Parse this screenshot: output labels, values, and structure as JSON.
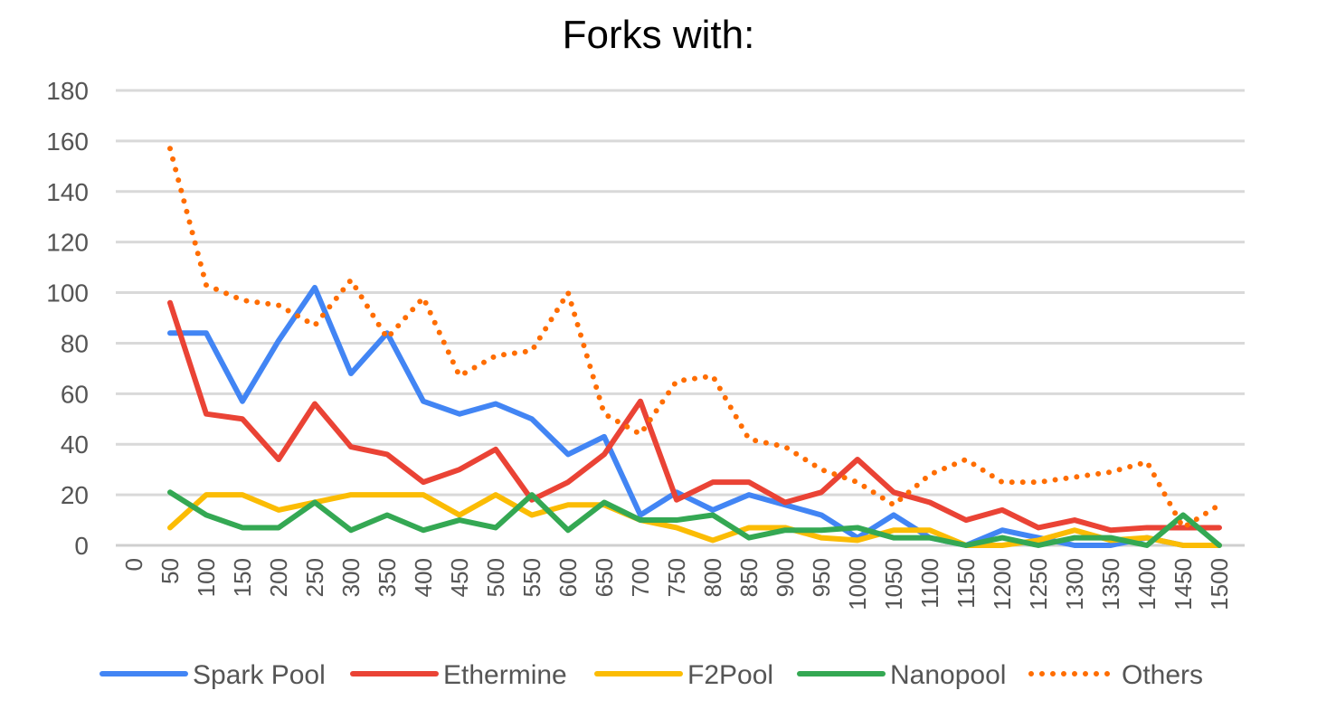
{
  "chart_data": {
    "type": "line",
    "title": "Forks with:",
    "xlabel": "",
    "ylabel": "",
    "ylim": [
      0,
      180
    ],
    "yticks": [
      0,
      20,
      40,
      60,
      80,
      100,
      120,
      140,
      160,
      180
    ],
    "grid": true,
    "legend_position": "bottom",
    "categories": [
      "0",
      "50",
      "100",
      "150",
      "200",
      "250",
      "300",
      "350",
      "400",
      "450",
      "500",
      "550",
      "600",
      "650",
      "700",
      "750",
      "800",
      "850",
      "900",
      "950",
      "1000",
      "1050",
      "1100",
      "1150",
      "1200",
      "1250",
      "1300",
      "1350",
      "1400",
      "1450",
      "1500"
    ],
    "series": [
      {
        "name": "Spark Pool",
        "color": "#4285F4",
        "style": "solid",
        "values": [
          null,
          84,
          84,
          57,
          81,
          102,
          68,
          84,
          57,
          52,
          56,
          50,
          36,
          43,
          12,
          21,
          14,
          20,
          16,
          12,
          3,
          12,
          3,
          0,
          6,
          3,
          0,
          0,
          3,
          0,
          0
        ]
      },
      {
        "name": "Ethermine",
        "color": "#EA4335",
        "style": "solid",
        "values": [
          null,
          96,
          52,
          50,
          34,
          56,
          39,
          36,
          25,
          30,
          38,
          18,
          25,
          36,
          57,
          18,
          25,
          25,
          17,
          21,
          34,
          21,
          17,
          10,
          14,
          7,
          10,
          6,
          7,
          7,
          7
        ]
      },
      {
        "name": "F2Pool",
        "color": "#FBBC04",
        "style": "solid",
        "values": [
          null,
          7,
          20,
          20,
          14,
          17,
          20,
          20,
          20,
          12,
          20,
          12,
          16,
          16,
          10,
          7,
          2,
          7,
          7,
          3,
          2,
          6,
          6,
          0,
          0,
          2,
          6,
          2,
          3,
          0,
          0
        ]
      },
      {
        "name": "Nanopool",
        "color": "#34A853",
        "style": "solid",
        "values": [
          null,
          21,
          12,
          7,
          7,
          17,
          6,
          12,
          6,
          10,
          7,
          20,
          6,
          17,
          10,
          10,
          12,
          3,
          6,
          6,
          7,
          3,
          3,
          0,
          3,
          0,
          3,
          3,
          0,
          12,
          0
        ]
      },
      {
        "name": "Others",
        "color": "#FF6D01",
        "style": "dotted",
        "values": [
          null,
          157,
          103,
          97,
          95,
          87,
          105,
          82,
          98,
          67,
          75,
          77,
          100,
          52,
          44,
          65,
          67,
          42,
          39,
          30,
          25,
          16,
          28,
          34,
          25,
          25,
          27,
          29,
          33,
          7,
          16
        ]
      }
    ]
  }
}
